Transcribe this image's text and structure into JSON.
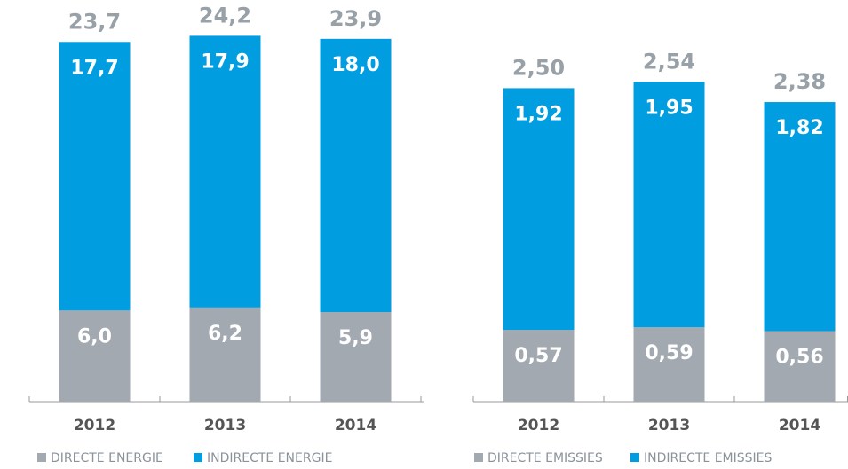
{
  "chart_data": [
    {
      "type": "bar",
      "stacked": true,
      "categories": [
        "2012",
        "2013",
        "2014"
      ],
      "series": [
        {
          "name": "DIRECTE ENERGIE",
          "color": "#a2a9b0",
          "values": [
            6.0,
            6.2,
            5.9
          ],
          "value_labels": [
            "6,0",
            "6,2",
            "5,9"
          ]
        },
        {
          "name": "INDIRECTE ENERGIE",
          "color": "#009ee0",
          "values": [
            17.7,
            17.9,
            18.0
          ],
          "value_labels": [
            "17,7",
            "17,9",
            "18,0"
          ]
        }
      ],
      "totals": [
        23.7,
        24.2,
        23.9
      ],
      "total_labels": [
        "23,7",
        "24,2",
        "23,9"
      ],
      "ylim": [
        0,
        25
      ]
    },
    {
      "type": "bar",
      "stacked": true,
      "categories": [
        "2012",
        "2013",
        "2014"
      ],
      "series": [
        {
          "name": "DIRECTE EMISSIES",
          "color": "#a2a9b0",
          "values": [
            0.57,
            0.59,
            0.56
          ],
          "value_labels": [
            "0,57",
            "0,59",
            "0,56"
          ]
        },
        {
          "name": "INDIRECTE EMISSIES",
          "color": "#009ee0",
          "values": [
            1.92,
            1.95,
            1.82
          ],
          "value_labels": [
            "1,92",
            "1,95",
            "1,82"
          ]
        }
      ],
      "totals": [
        2.5,
        2.54,
        2.38
      ],
      "total_labels": [
        "2,50",
        "2,54",
        "2,38"
      ],
      "ylim": [
        0,
        3
      ]
    }
  ]
}
